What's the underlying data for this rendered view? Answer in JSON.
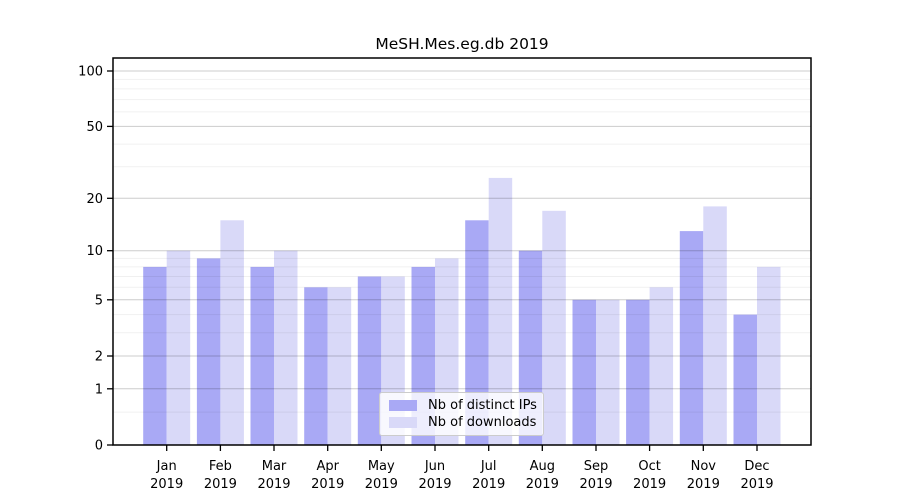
{
  "chart_data": {
    "type": "bar",
    "title": "MeSH.Mes.eg.db 2019",
    "categories": [
      "Jan",
      "Feb",
      "Mar",
      "Apr",
      "May",
      "Jun",
      "Jul",
      "Aug",
      "Sep",
      "Oct",
      "Nov",
      "Dec"
    ],
    "category_year": "2019",
    "series": [
      {
        "name": "Nb of distinct IPs",
        "color": "#a9a9f5",
        "values": [
          8,
          9,
          8,
          6,
          7,
          8,
          15,
          10,
          5,
          5,
          13,
          4
        ]
      },
      {
        "name": "Nb of downloads",
        "color": "#d9d9f8",
        "values": [
          10,
          15,
          10,
          6,
          7,
          9,
          26,
          17,
          5,
          6,
          18,
          8
        ]
      }
    ],
    "yscale": "log1p",
    "yticks": [
      0,
      1,
      2,
      5,
      10,
      20,
      50,
      100
    ],
    "yticks_minor": [
      0.5,
      3,
      4,
      6,
      7,
      8,
      9,
      30,
      40,
      60,
      70,
      80,
      90
    ],
    "ylim": [
      0,
      118
    ],
    "grid": true,
    "legend_position": "lower center",
    "colors": {
      "bar_dark": "#a9a9f5",
      "bar_light": "#d9d9f8",
      "grid_major": "rgba(0,0,0,0.20)",
      "grid_minor": "rgba(0,0,0,0.06)",
      "axis": "#000000",
      "tick_text": "#000000",
      "legend_border": "#cccccc",
      "legend_bg": "rgba(255,255,255,0.8)"
    }
  }
}
